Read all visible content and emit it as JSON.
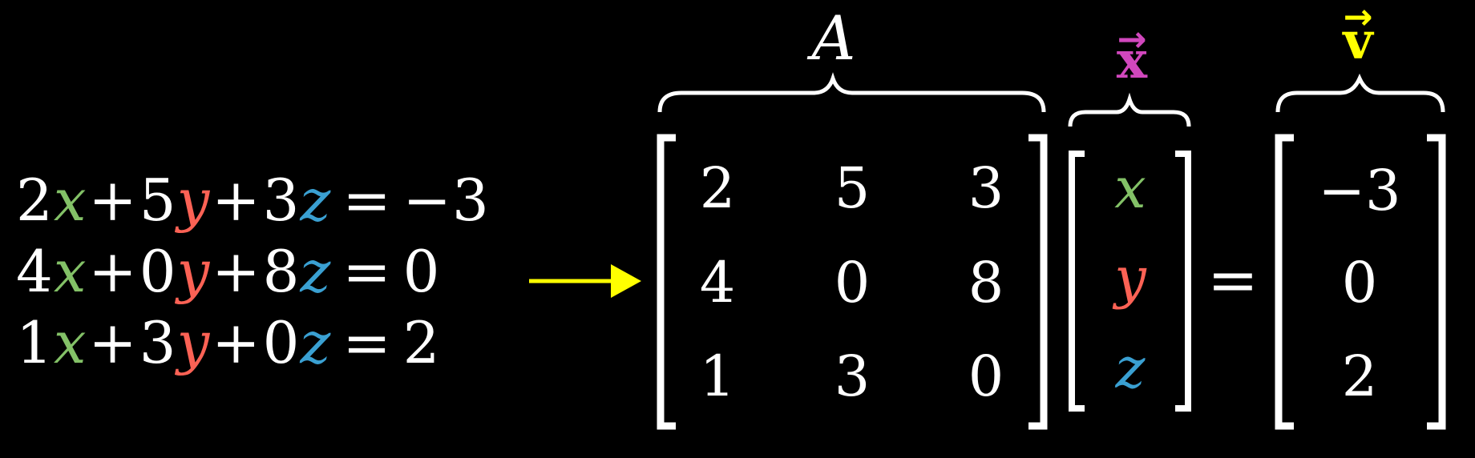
{
  "colors": {
    "background": "#000000",
    "text": "#ffffff",
    "x_var": "#83c167",
    "y_var": "#fc6255",
    "z_var": "#3aa0d2",
    "arrow": "#ffff00",
    "x_vector": "#d147bd",
    "v_vector": "#ffff00"
  },
  "equations": [
    {
      "c1": "2",
      "v1": "x",
      "op1": "+",
      "c2": "5",
      "v2": "y",
      "op2": "+",
      "c3": "3",
      "v3": "z",
      "eq": "=",
      "rhs": "−3"
    },
    {
      "c1": "4",
      "v1": "x",
      "op1": "+",
      "c2": "0",
      "v2": "y",
      "op2": "+",
      "c3": "8",
      "v3": "z",
      "eq": "=",
      "rhs": "0"
    },
    {
      "c1": "1",
      "v1": "x",
      "op1": "+",
      "c2": "3",
      "v2": "y",
      "op2": "+",
      "c3": "0",
      "v3": "z",
      "eq": "=",
      "rhs": "2"
    }
  ],
  "matrix_a": {
    "label": "A",
    "rows": [
      [
        "2",
        "5",
        "3"
      ],
      [
        "4",
        "0",
        "8"
      ],
      [
        "1",
        "3",
        "0"
      ]
    ]
  },
  "vector_x": {
    "label": "x",
    "arrow": "→",
    "entries": [
      "x",
      "y",
      "z"
    ]
  },
  "equals": "=",
  "vector_v": {
    "label": "v",
    "arrow": "→",
    "entries": [
      "−3",
      "0",
      "2"
    ]
  }
}
